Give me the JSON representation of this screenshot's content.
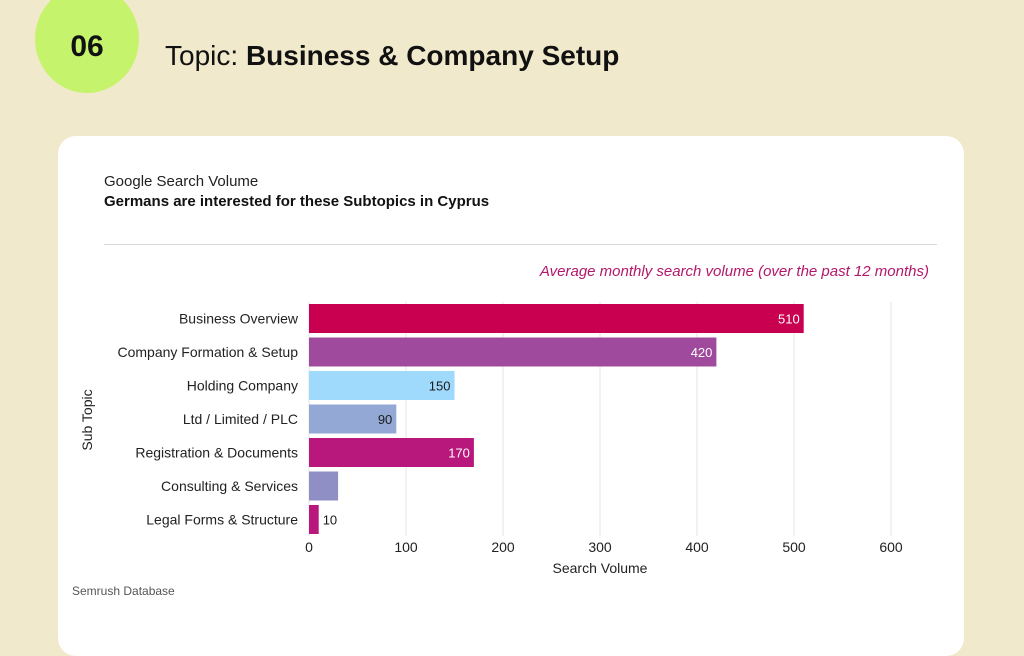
{
  "header": {
    "number": "06",
    "topic_prefix": "Topic: ",
    "topic_title": "Business & Company Setup"
  },
  "card": {
    "kicker": "Google Search Volume",
    "subtitle": "Germans are interested for these Subtopics in Cyprus",
    "note": "Average monthly search volume (over the past 12 months)",
    "source": "Semrush Database"
  },
  "colors": {
    "background": "#f1e9cb",
    "badge": "#c6f36c",
    "accent_note": "#b3176b"
  },
  "chart_data": {
    "type": "bar",
    "orientation": "horizontal",
    "xlabel": "Search Volume",
    "ylabel": "Sub Topic",
    "xlim": [
      0,
      600
    ],
    "xticks": [
      0,
      100,
      200,
      300,
      400,
      500,
      600
    ],
    "grid": "vertical",
    "categories": [
      "Business Overview",
      "Company Formation & Setup",
      "Holding Company",
      "Ltd / Limited / PLC",
      "Registration & Documents",
      "Consulting & Services",
      "Legal Forms & Structure"
    ],
    "values": [
      510,
      420,
      150,
      90,
      170,
      30,
      10
    ],
    "bar_colors": [
      "#c9004f",
      "#a04a9e",
      "#9fd9fb",
      "#93a8d4",
      "#b8177b",
      "#8f8fc6",
      "#b8177b"
    ],
    "label_colors": [
      "#ffffff",
      "#ffffff",
      "#1a1a1a",
      "#1a1a1a",
      "#ffffff",
      "#ffffff",
      "#1a1a1a"
    ]
  }
}
